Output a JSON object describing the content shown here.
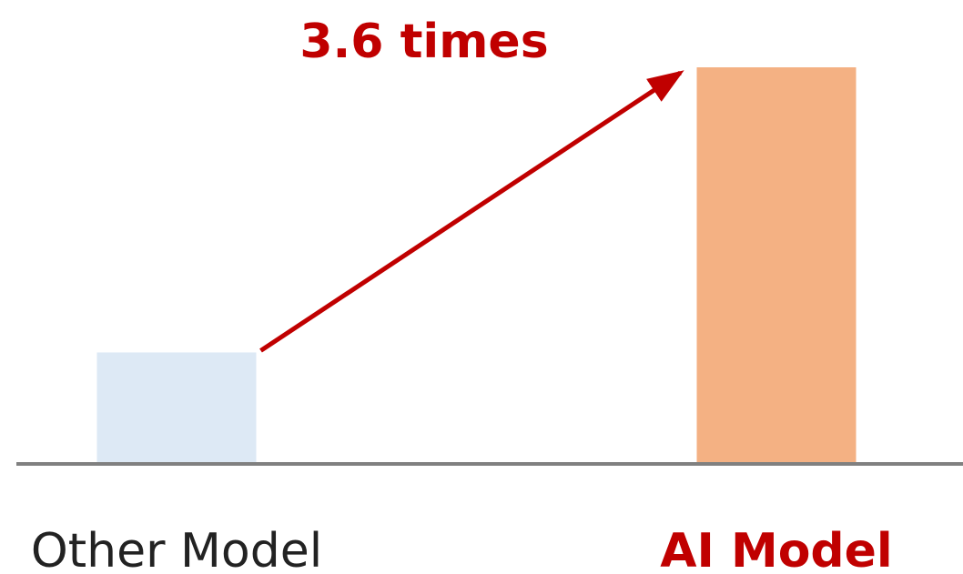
{
  "chart_data": {
    "type": "bar",
    "categories": [
      "Other Model",
      "AI Model"
    ],
    "values": [
      1,
      3.6
    ],
    "annotation": "3.6 times",
    "ylim": [
      0,
      3.6
    ],
    "grid": false,
    "legend": "none",
    "colors": {
      "bars": [
        "#dde9f5",
        "#f4b183"
      ],
      "emphasis": "#c00000",
      "baseline": "#808080",
      "label_default": "#222222"
    }
  }
}
